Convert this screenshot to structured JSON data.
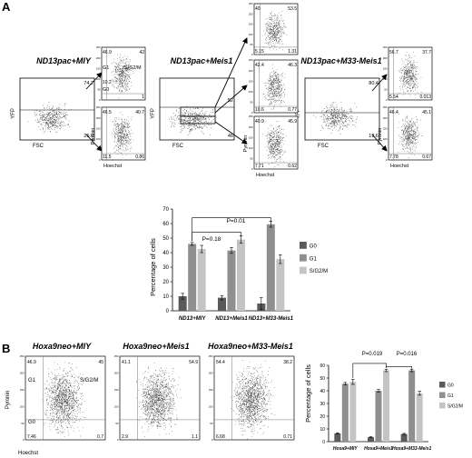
{
  "panel_labels": {
    "a": "A",
    "b": "B"
  },
  "panel_a": {
    "conditions": [
      {
        "title": "ND13pac+MIY",
        "yfp_gate_label": "74.2",
        "low_gate_label": "25.6",
        "upper_plot": {
          "q_tl": "46.9",
          "q_tr": "42",
          "q_bl": "10.2",
          "q_br": "1"
        },
        "lower_plot": {
          "q_tl": "46.5",
          "q_tr": "40.7",
          "q_bl": "11.5",
          "q_br": "0.86"
        }
      },
      {
        "title": "ND13pac+Meis1",
        "yfp_gate_label": "52",
        "low_gate_label": "46",
        "top_plot": {
          "q_tl": "40",
          "q_tr": "53.5",
          "q_bl": "5.15",
          "q_br": "1.31"
        },
        "upper_plot": {
          "q_tl": "42.4",
          "q_tr": "46.3",
          "q_bl": "10.6",
          "q_br": "0.77"
        },
        "lower_plot": {
          "q_tl": "40.9",
          "q_tr": "45.9",
          "q_bl": "7.71",
          "q_br": "0.62"
        }
      },
      {
        "title": "ND13pac+M33-Meis1",
        "yfp_gate_label": "80.4",
        "low_gate_label": "19.6",
        "upper_plot": {
          "q_tl": "56.7",
          "q_tr": "37.7",
          "q_bl": "5.54",
          "q_br": "0.013"
        },
        "lower_plot": {
          "q_tl": "46.4",
          "q_tr": "45.1",
          "q_bl": "7.78",
          "q_br": "0.67"
        }
      }
    ],
    "gate_labels": {
      "g1": "G1",
      "g0": "G0",
      "sg2m": "S/G2/M"
    },
    "axis_labels": {
      "yfp": "YFP",
      "fsc": "FSC",
      "pyronin": "Pyronin",
      "hoechst": "Hoechst"
    },
    "tick_labels": {
      "t0": "0",
      "t50": "50",
      "t100": "100",
      "t150": "150",
      "t200": "200",
      "t250": "250"
    }
  },
  "chart_a": {
    "pvalues": {
      "p1": "P=0.01",
      "p2": "P=0.18"
    }
  },
  "panel_b": {
    "conditions": [
      {
        "title": "Hoxa9neo+MIY",
        "q_tl": "46.9",
        "q_tr": "45",
        "q_bl": "7.46",
        "q_br": "0.7"
      },
      {
        "title": "Hoxa9neo+Meis1",
        "q_tl": "41.1",
        "q_tr": "54.9",
        "q_bl": "2.9",
        "q_br": "1.1"
      },
      {
        "title": "Hoxa9neo+M33-Meis1",
        "q_tl": "54.4",
        "q_tr": "38.2",
        "q_bl": "6.68",
        "q_br": "0.71"
      }
    ],
    "gate_labels": {
      "g1": "G1",
      "g0": "G0",
      "sg2m": "S/G2/M"
    },
    "axis_labels": {
      "pyronin": "Pyronin",
      "hoechst": "Hoechst"
    },
    "tick_labels": {
      "t0": "0",
      "t50": "50",
      "t100": "100",
      "t150": "150",
      "t200": "200",
      "t250": "250"
    }
  },
  "chart_b": {
    "pvalues": {
      "p1": "P=0.019",
      "p2": "P=0.016"
    }
  },
  "chart_data": [
    {
      "type": "bar",
      "title": "",
      "xlabel": "",
      "ylabel": "Percentage of cells",
      "ylim": [
        0,
        70
      ],
      "yticks": [
        "0",
        "10",
        "20",
        "30",
        "40",
        "50",
        "60",
        "70"
      ],
      "categories": [
        "ND13+MIY",
        "ND13+Meis1",
        "ND13+M33-Meis1"
      ],
      "series": [
        {
          "name": "G0",
          "color": "#5a5a5a",
          "values": [
            10,
            9,
            5
          ],
          "errors": [
            2,
            1.5,
            4
          ]
        },
        {
          "name": "G1",
          "color": "#8f8f8f",
          "values": [
            46,
            41.5,
            59.5
          ],
          "errors": [
            1,
            2,
            2
          ]
        },
        {
          "name": "S/G2/M",
          "color": "#c4c4c4",
          "values": [
            42.5,
            49,
            35.5
          ],
          "errors": [
            2.5,
            2.5,
            3
          ]
        }
      ],
      "legend": [
        "G0",
        "G1",
        "S/G2/M"
      ],
      "legend_position": "right",
      "annotations": [
        "P=0.01",
        "P=0.18"
      ]
    },
    {
      "type": "bar",
      "title": "",
      "xlabel": "",
      "ylabel": "Percentage of cells",
      "ylim": [
        0,
        60
      ],
      "yticks": [
        "0",
        "10",
        "20",
        "30",
        "40",
        "50",
        "60"
      ],
      "categories": [
        "Hoxa9+MIY",
        "Hoxa9+Meis1",
        "Hoxa9+M33-Meis1"
      ],
      "series": [
        {
          "name": "G0",
          "color": "#5a5a5a",
          "values": [
            6.5,
            3.5,
            6
          ],
          "errors": [
            0.5,
            0.4,
            0.5
          ]
        },
        {
          "name": "G1",
          "color": "#8f8f8f",
          "values": [
            45.5,
            40,
            56
          ],
          "errors": [
            1,
            1,
            1
          ]
        },
        {
          "name": "S/G2/M",
          "color": "#c4c4c4",
          "values": [
            47,
            56,
            38
          ],
          "errors": [
            2,
            1,
            1.5
          ]
        }
      ],
      "legend": [
        "G0",
        "G1",
        "S/G2/M"
      ],
      "legend_position": "right",
      "annotations": [
        "P=0.019",
        "P=0.016"
      ]
    }
  ]
}
